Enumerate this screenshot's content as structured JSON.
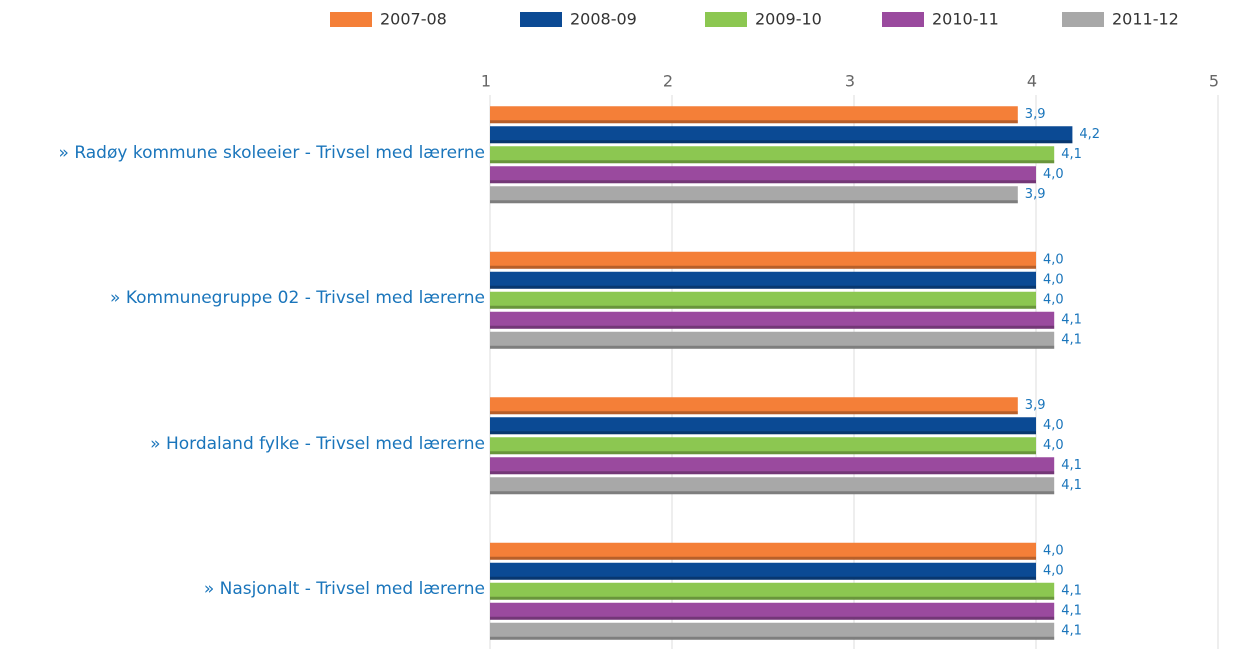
{
  "chart_data": {
    "type": "bar",
    "orientation": "horizontal",
    "categories": [
      "» Radøy kommune skoleeier - Trivsel med lærerne",
      "» Kommunegruppe 02 - Trivsel med lærerne",
      "» Hordaland fylke - Trivsel med lærerne",
      "» Nasjonalt - Trivsel med lærerne"
    ],
    "series": [
      {
        "name": "2007-08",
        "color": "#f47f38",
        "values": [
          3.9,
          4.0,
          3.9,
          4.0
        ],
        "value_labels": [
          "3,9",
          "4,0",
          "3,9",
          "4,0"
        ]
      },
      {
        "name": "2008-09",
        "color": "#0b4a94",
        "values": [
          4.2,
          4.0,
          4.0,
          4.0
        ],
        "value_labels": [
          "4,2",
          "4,0",
          "4,0",
          "4,0"
        ]
      },
      {
        "name": "2009-10",
        "color": "#8cc751",
        "values": [
          4.1,
          4.0,
          4.0,
          4.1
        ],
        "value_labels": [
          "4,1",
          "4,0",
          "4,0",
          "4,1"
        ]
      },
      {
        "name": "2010-11",
        "color": "#9a4a9e",
        "values": [
          4.0,
          4.1,
          4.1,
          4.1
        ],
        "value_labels": [
          "4,0",
          "4,1",
          "4,1",
          "4,1"
        ]
      },
      {
        "name": "2011-12",
        "color": "#a8a8a8",
        "values": [
          3.9,
          4.1,
          4.1,
          4.1
        ],
        "value_labels": [
          "3,9",
          "4,1",
          "4,1",
          "4,1"
        ]
      }
    ],
    "xlim": [
      1,
      5
    ],
    "xticks": [
      1,
      2,
      3,
      4,
      5
    ],
    "grid": true,
    "legend": "top"
  }
}
